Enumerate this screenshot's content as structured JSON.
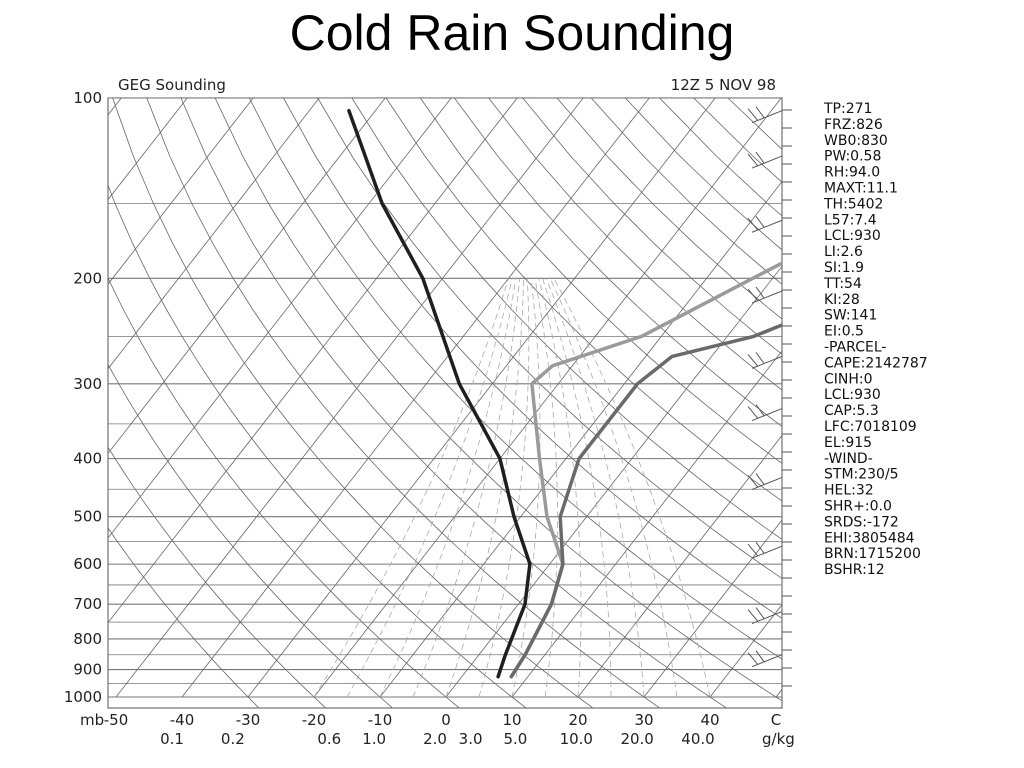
{
  "slide_title": "Cold Rain Sounding",
  "chart_data": {
    "type": "line",
    "subtype": "skew-T log-P sounding",
    "title": "GEG Sounding",
    "timestamp": "12Z  5 NOV 98",
    "y_axis": {
      "unit_label": "mb",
      "scale": "log",
      "range": [
        1000,
        100
      ],
      "ticks": [
        "100",
        "200",
        "300",
        "400",
        "500",
        "600",
        "700",
        "800",
        "900",
        "1000"
      ]
    },
    "x_axis": {
      "temperature_ticks": [
        "-50",
        "-40",
        "-30",
        "-20",
        "-10",
        "0",
        "10",
        "20",
        "30",
        "40",
        "C"
      ],
      "temperature_range": [
        -50,
        50
      ],
      "mixing_ratio_ticks": [
        "0.1",
        "0.2",
        "0.6",
        "1.0",
        "2.0",
        "3.0",
        "5.0",
        "10.0",
        "20.0",
        "40.0"
      ],
      "mixing_ratio_unit": "g/kg"
    },
    "grid": true,
    "series": [
      {
        "color": "#9a9a9a",
        "values": [
          [
            925,
            7.5
          ],
          [
            850,
            7
          ],
          [
            700,
            5
          ],
          [
            600,
            2
          ],
          [
            500,
            -6
          ],
          [
            400,
            -14
          ],
          [
            300,
            -24
          ],
          [
            280,
            -23
          ],
          [
            250,
            -13
          ],
          [
            200,
            -3
          ],
          [
            150,
            10
          ],
          [
            125,
            17
          ],
          [
            110,
            22
          ],
          [
            100,
            26
          ]
        ]
      },
      {
        "color": "#6a6a6a",
        "values": [
          [
            925,
            7.5
          ],
          [
            850,
            7
          ],
          [
            700,
            5
          ],
          [
            600,
            2
          ],
          [
            500,
            -4
          ],
          [
            400,
            -8
          ],
          [
            300,
            -8
          ],
          [
            270,
            -6
          ],
          [
            250,
            4
          ],
          [
            200,
            19
          ],
          [
            170,
            28
          ],
          [
            150,
            38
          ],
          [
            125,
            45
          ],
          [
            110,
            49
          ],
          [
            100,
            52
          ]
        ]
      },
      {
        "color": "#1f1f1f",
        "values": [
          [
            925,
            5.5
          ],
          [
            850,
            4
          ],
          [
            700,
            1
          ],
          [
            600,
            -3
          ],
          [
            500,
            -11
          ],
          [
            400,
            -20
          ],
          [
            300,
            -35
          ],
          [
            200,
            -53
          ],
          [
            150,
            -68
          ],
          [
            120,
            -78
          ],
          [
            105,
            -84
          ]
        ]
      }
    ],
    "indices": [
      "TP:271",
      "FRZ:826",
      "WB0:830",
      "PW:0.58",
      "RH:94.0",
      "MAXT:11.1",
      "TH:5402",
      "L57:7.4",
      "LCL:930",
      "LI:2.6",
      "SI:1.9",
      "TT:54",
      "KI:28",
      "SW:141",
      "EI:0.5",
      "-PARCEL-",
      "CAPE:2142787",
      "CINH:0",
      "LCL:930",
      "CAP:5.3",
      "LFC:7018109",
      "EL:915",
      "-WIND-",
      "STM:230/5",
      "HEL:32",
      "SHR+:0.0",
      "SRDS:-172",
      "EHI:3805484",
      "BRN:1715200",
      "BSHR:12"
    ],
    "wind_barbs": [
      "barbs",
      "barbs",
      "barbs",
      "barbs",
      "barbs",
      "barbs",
      "barbs",
      "barbs",
      "barbs",
      "barbs"
    ]
  }
}
